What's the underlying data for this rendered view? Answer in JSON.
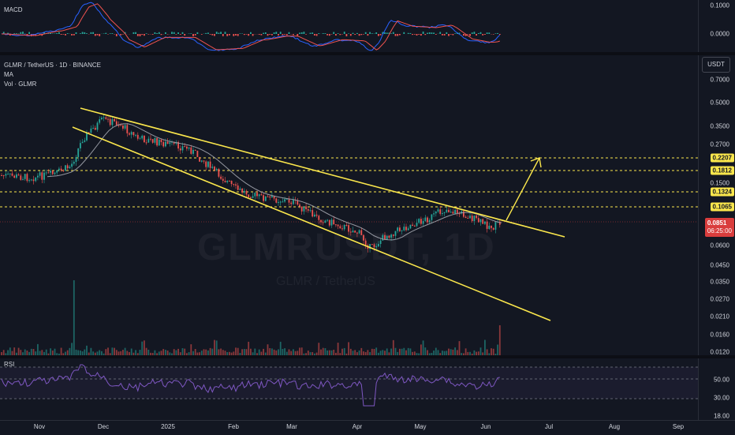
{
  "macd_pane": {
    "label": "MACD",
    "ticks": [
      "0.1000",
      "0.0000"
    ]
  },
  "main_pane": {
    "title": "GLMR / TetherUS · 1D · BINANCE",
    "indicator_ma": "MA",
    "indicator_vol": "Vol · GLMR",
    "unit_button": "USDT",
    "watermark": "GLMRUSDT, 1D",
    "watermark_sub": "GLMR / TetherUS",
    "price_ticks": [
      "0.7000",
      "0.5000",
      "0.3500",
      "0.2700",
      "0.1500",
      "0.0600",
      "0.0450",
      "0.0350",
      "0.0270",
      "0.0210",
      "0.0160",
      "0.0120"
    ],
    "level_tags": [
      "0.2207",
      "0.1812",
      "0.1324",
      "0.1065"
    ],
    "last_price": "0.0851",
    "countdown": "06:25:00"
  },
  "rsi_pane": {
    "label": "RSI",
    "ticks": [
      "50.00",
      "30.00",
      "18.00"
    ]
  },
  "x_axis": {
    "labels": [
      "Nov",
      "Dec",
      "2025",
      "Feb",
      "Mar",
      "Apr",
      "May",
      "Jun",
      "Jul",
      "Aug",
      "Sep"
    ]
  },
  "colors": {
    "background": "#131722",
    "level": "#fbe74c",
    "up": "#26a69a",
    "down": "#ef5350",
    "ma": "#9598a1",
    "rsi": "#7e57c2",
    "last_price": "#d93d3d"
  }
}
